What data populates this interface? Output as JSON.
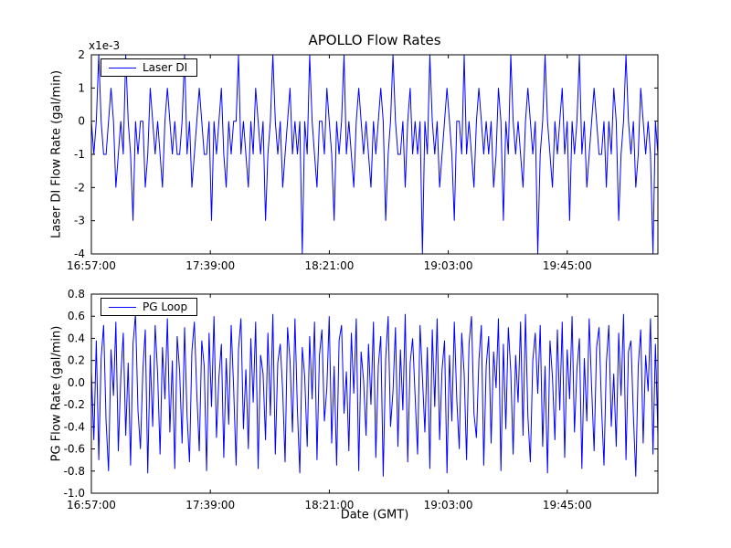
{
  "figure": {
    "title": "APOLLO Flow Rates",
    "xlabel": "Date (GMT)",
    "background": "#ffffff"
  },
  "chart_data": [
    {
      "type": "line",
      "title": "APOLLO Flow Rates",
      "ylabel": "Laser DI Flow Rate (gal/min)",
      "legend": "Laser DI",
      "offset_text": "x1e-3",
      "color": "#0000ff",
      "grid": false,
      "legend_position": "upper-left",
      "units_note": "values are in units of 1e-3 gal/min (axis offset x1e-3)",
      "xlim": [
        0,
        200
      ],
      "x_units": "minutes since 16:57:00 GMT",
      "x_tick_positions": [
        0,
        42,
        84,
        126,
        168
      ],
      "x_tick_labels": [
        "16:57:00",
        "17:39:00",
        "18:21:00",
        "19:03:00",
        "19:45:00"
      ],
      "ylim": [
        -4,
        2
      ],
      "y_tick_values": [
        2,
        1,
        0,
        -1,
        -2,
        -3,
        -4
      ],
      "y_tick_labels": [
        "2",
        "1",
        "0",
        "-1",
        "-2",
        "-3",
        "-4"
      ],
      "values": [
        0,
        -1,
        0,
        2,
        0,
        -1,
        -1,
        0,
        1,
        0,
        -2,
        -1,
        0,
        -1,
        2,
        0,
        -1,
        -3,
        0,
        -1,
        0,
        0,
        -2,
        -1,
        1,
        0,
        -1,
        0,
        -1,
        -2,
        0,
        1,
        0,
        -1,
        0,
        -1,
        -1,
        0,
        2,
        -1,
        0,
        -2,
        -1,
        0,
        1,
        0,
        -1,
        -1,
        0,
        -3,
        0,
        -1,
        0,
        1,
        -1,
        -2,
        0,
        -1,
        0,
        0,
        2,
        -1,
        0,
        -1,
        -2,
        0,
        -1,
        1,
        0,
        -1,
        0,
        -3,
        -1,
        0,
        2,
        0,
        -1,
        0,
        -2,
        -1,
        0,
        1,
        -1,
        0,
        -1,
        0,
        -4,
        0,
        -1,
        2,
        0,
        -1,
        -2,
        0,
        0,
        -1,
        1,
        0,
        -1,
        -3,
        0,
        -1,
        0,
        2,
        -1,
        0,
        -1,
        -2,
        0,
        1,
        0,
        -1,
        0,
        -1,
        -2,
        0,
        -1,
        0,
        1,
        0,
        -3,
        -1,
        0,
        2,
        0,
        -1,
        -1,
        0,
        -2,
        0,
        1,
        -1,
        0,
        -1,
        0,
        -4,
        0,
        -1,
        2,
        0,
        -1,
        0,
        -2,
        -1,
        0,
        1,
        0,
        -1,
        -3,
        0,
        0,
        -1,
        2,
        -1,
        0,
        -1,
        -2,
        0,
        1,
        0,
        -1,
        0,
        -1,
        0,
        -2,
        -1,
        1,
        0,
        -3,
        0,
        -1,
        2,
        0,
        -1,
        0,
        -1,
        -2,
        0,
        1,
        0,
        -1,
        0,
        -4,
        -1,
        0,
        2,
        0,
        -1,
        -2,
        0,
        -1,
        0,
        1,
        -1,
        0,
        -3,
        0,
        -1,
        0,
        2,
        -1,
        0,
        -2,
        -1,
        0,
        1,
        0,
        -1,
        -1,
        0,
        -2,
        0,
        -1,
        1,
        0,
        -3,
        -1,
        0,
        2,
        0,
        -1,
        0,
        -2,
        -1,
        1,
        0,
        -1,
        0,
        -1,
        -4,
        0,
        -1
      ]
    },
    {
      "type": "line",
      "ylabel": "PG Flow Rate (gal/min)",
      "legend": "PG Loop",
      "color": "#0000ff",
      "grid": false,
      "legend_position": "upper-left",
      "xlim": [
        0,
        200
      ],
      "x_units": "minutes since 16:57:00 GMT",
      "x_tick_positions": [
        0,
        42,
        84,
        126,
        168
      ],
      "x_tick_labels": [
        "16:57:00",
        "17:39:00",
        "18:21:00",
        "19:03:00",
        "19:45:00"
      ],
      "ylim": [
        -1.0,
        0.8
      ],
      "y_tick_values": [
        0.8,
        0.6,
        0.4,
        0.2,
        0.0,
        -0.2,
        -0.4,
        -0.6,
        -0.8,
        -1.0
      ],
      "y_tick_labels": [
        "0.8",
        "0.6",
        "0.4",
        "0.2",
        "0.0",
        "-0.2",
        "-0.4",
        "-0.6",
        "-0.8",
        "-1.0"
      ],
      "values": [
        0.1,
        -0.52,
        0.38,
        -0.7,
        0.22,
        0.52,
        -0.35,
        -0.8,
        0.3,
        -0.12,
        0.55,
        -0.62,
        0.05,
        0.45,
        -0.48,
        0.18,
        -0.75,
        0.35,
        0.62,
        -0.25,
        -0.6,
        0.12,
        0.48,
        -0.82,
        0.25,
        -0.4,
        0.52,
        0.08,
        -0.65,
        0.32,
        -0.15,
        0.58,
        -0.45,
        0.2,
        -0.78,
        0.42,
        0.1,
        -0.55,
        0.5,
        -0.3,
        -0.72,
        0.28,
        0.55,
        -0.1,
        -0.62,
        0.38,
        0.15,
        -0.8,
        0.45,
        -0.22,
        0.6,
        -0.5,
        0.05,
        0.35,
        -0.68,
        0.22,
        -0.38,
        0.52,
        -0.05,
        -0.75,
        0.3,
        0.58,
        -0.42,
        0.12,
        -0.6,
        0.4,
        -0.18,
        0.55,
        -0.78,
        0.25,
        0.08,
        -0.52,
        0.45,
        -0.3,
        0.62,
        -0.65,
        0.18,
        0.35,
        -0.08,
        -0.72,
        0.5,
        0.2,
        -0.45,
        0.58,
        -0.25,
        -0.82,
        0.32,
        0.05,
        -0.58,
        0.42,
        -0.15,
        0.55,
        -0.7,
        0.25,
        0.48,
        -0.35,
        -0.05,
        0.6,
        -0.55,
        0.15,
        -0.75,
        0.38,
        0.52,
        -0.28,
        0.1,
        -0.62,
        0.45,
        -0.1,
        0.58,
        -0.8,
        0.28,
        0.02,
        -0.48,
        0.35,
        -0.2,
        0.55,
        -0.68,
        0.15,
        0.42,
        -0.85,
        0.22,
        0.6,
        -0.4,
        -0.08,
        0.5,
        -0.58,
        0.3,
        -0.25,
        0.62,
        -0.72,
        0.18,
        0.4,
        -0.12,
        -0.65,
        0.52,
        0.05,
        -0.45,
        0.32,
        -0.78,
        0.48,
        -0.22,
        0.58,
        -0.52,
        0.12,
        0.38,
        -0.82,
        0.25,
        -0.35,
        0.55,
        -0.15,
        -0.6,
        0.45,
        0.08,
        -0.7,
        0.35,
        0.6,
        -0.28,
        -0.5,
        0.2,
        0.52,
        -0.75,
        0.15,
        0.42,
        -0.55,
        0.28,
        -0.05,
        0.58,
        -0.8,
        0.35,
        -0.42,
        0.5,
        0.1,
        -0.65,
        0.25,
        -0.18,
        0.55,
        -0.48,
        0.62,
        -0.3,
        -0.72,
        0.2,
        0.45,
        -0.1,
        0.52,
        -0.58,
        0.15,
        -0.82,
        0.38,
        0.05,
        -0.52,
        0.48,
        -0.25,
        0.55,
        -0.68,
        0.3,
        -0.15,
        0.6,
        -0.45,
        0.12,
        0.4,
        -0.78,
        0.22,
        -0.35,
        0.58,
        -0.05,
        -0.62,
        0.32,
        0.5,
        -0.22,
        -0.75,
        0.18,
        0.52,
        -0.4,
        0.08,
        -0.58,
        0.45,
        -0.12,
        0.62,
        -0.7,
        0.28,
        0.38,
        -0.3,
        -0.85,
        0.15,
        0.48,
        -0.55,
        0.25,
        -0.08,
        0.58,
        -0.65,
        0.35,
        -0.48
      ]
    }
  ]
}
